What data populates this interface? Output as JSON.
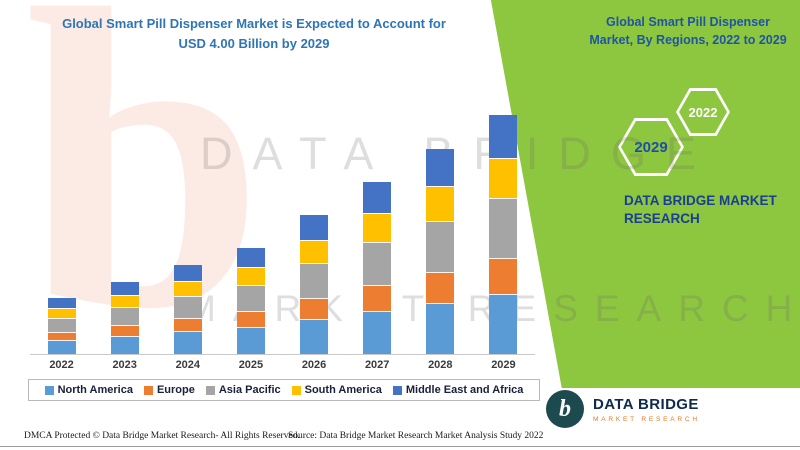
{
  "header": {
    "chart_title_line1": "Global Smart Pill Dispenser Market is Expected to Account for",
    "chart_title_line2": "USD 4.00 Billion by 2029"
  },
  "right_panel": {
    "background_color": "#8DC63F",
    "title_line1": "Global Smart Pill Dispenser",
    "title_line2": "Market, By Regions, 2022 to 2029",
    "hexagons": [
      {
        "label": "2029"
      },
      {
        "label": "2022"
      }
    ],
    "brand_line1": "DATA BRIDGE MARKET",
    "brand_line2": "RESEARCH"
  },
  "watermark": {
    "letter": "b",
    "line1": "DATA BRIDGE",
    "line2": "MARKET RESEARCH"
  },
  "chart_data": {
    "type": "bar",
    "stacked": true,
    "title": "Global Smart Pill Dispenser Market is Expected to Account for USD 4.00 Billion by 2029",
    "xlabel": "",
    "ylabel": "",
    "ylim": [
      0,
      4.2
    ],
    "grid": false,
    "legend_position": "bottom",
    "categories": [
      "2022",
      "2023",
      "2024",
      "2025",
      "2026",
      "2027",
      "2028",
      "2029"
    ],
    "series": [
      {
        "name": "North America",
        "color": "#5B9BD5",
        "values": [
          0.24,
          0.3,
          0.38,
          0.45,
          0.58,
          0.73,
          0.86,
          1.0
        ]
      },
      {
        "name": "Europe",
        "color": "#ED7D31",
        "values": [
          0.14,
          0.18,
          0.22,
          0.27,
          0.35,
          0.44,
          0.52,
          0.6
        ]
      },
      {
        "name": "Asia Pacific",
        "color": "#A5A5A5",
        "values": [
          0.23,
          0.3,
          0.37,
          0.44,
          0.58,
          0.72,
          0.86,
          1.0
        ]
      },
      {
        "name": "South America",
        "color": "#FFC000",
        "values": [
          0.16,
          0.2,
          0.25,
          0.3,
          0.39,
          0.49,
          0.59,
          0.68
        ]
      },
      {
        "name": "Middle East and Africa",
        "color": "#4472C4",
        "values": [
          0.17,
          0.22,
          0.27,
          0.32,
          0.42,
          0.52,
          0.62,
          0.72
        ]
      }
    ],
    "totals": [
      0.94,
      1.2,
      1.49,
      1.78,
      2.32,
      2.9,
      3.45,
      4.0
    ]
  },
  "footer": {
    "dmca": "DMCA Protected © Data Bridge Market Research- All Rights Reserved.",
    "source": "Source: Data Bridge Market Research Market Analysis Study 2022"
  },
  "logo": {
    "letter": "b",
    "name": "DATA BRIDGE",
    "tagline": "MARKET RESEARCH"
  }
}
